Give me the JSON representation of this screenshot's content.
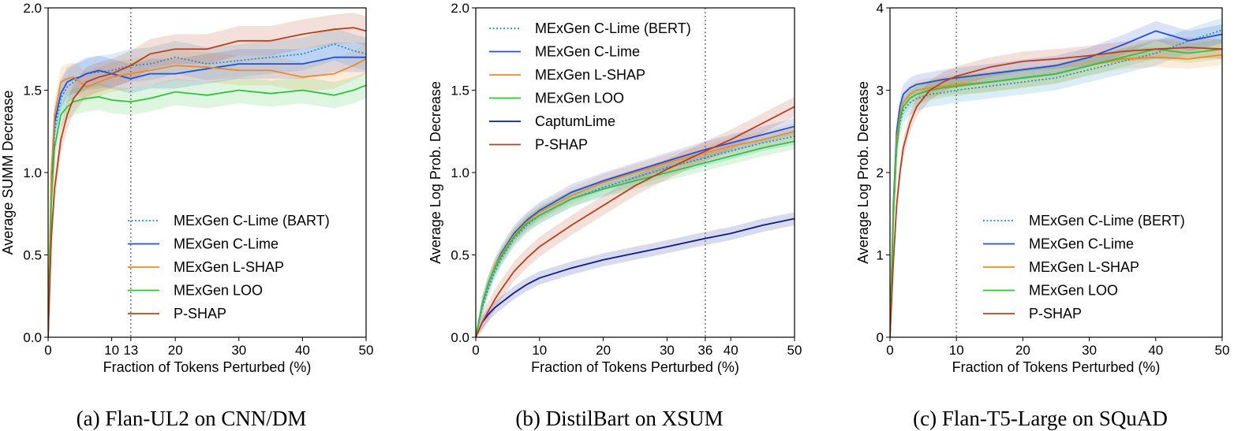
{
  "colors": {
    "MExGen C-Lime (BART)": "#1f8fc8",
    "MExGen C-Lime (BERT)": "#1f8fc8",
    "MExGen C-Lime": "#1f4fe0",
    "MExGen L-SHAP": "#f08a24",
    "MExGen LOO": "#2fc43c",
    "CaptumLime": "#0c1a8c",
    "P-SHAP": "#b8401a"
  },
  "chart_data": [
    {
      "type": "line",
      "caption": "(a) Flan-UL2 on CNN/DM",
      "xlabel": "Fraction of Tokens Perturbed (%)",
      "ylabel": "Average SUMM Decrease",
      "xlim": [
        0,
        50
      ],
      "ylim": [
        0,
        2
      ],
      "xticks": [
        0,
        10,
        13,
        20,
        30,
        40,
        50
      ],
      "xtick_labels": [
        "0",
        "10",
        "13",
        "20",
        "30",
        "40",
        "50"
      ],
      "yticks": [
        0,
        0.5,
        1.0,
        1.5,
        2.0
      ],
      "ytick_labels": [
        "0.0",
        "0.5",
        "1.0",
        "1.5",
        "2.0"
      ],
      "vline": 13,
      "legend_position": "lower-right",
      "series": [
        {
          "name": "MExGen C-Lime (BART)",
          "dash": "dotted",
          "x": [
            0,
            0.5,
            1,
            2,
            3,
            4,
            5,
            6,
            8,
            10,
            13,
            16,
            20,
            25,
            30,
            35,
            40,
            45,
            48,
            50
          ],
          "y": [
            0,
            0.9,
            1.25,
            1.45,
            1.52,
            1.55,
            1.58,
            1.6,
            1.61,
            1.62,
            1.65,
            1.66,
            1.7,
            1.66,
            1.68,
            1.7,
            1.72,
            1.78,
            1.74,
            1.72
          ],
          "band": 0.1
        },
        {
          "name": "MExGen C-Lime",
          "x": [
            0,
            0.5,
            1,
            2,
            3,
            4,
            5,
            6,
            8,
            10,
            13,
            16,
            20,
            25,
            30,
            35,
            40,
            45,
            48,
            50
          ],
          "y": [
            0,
            0.95,
            1.3,
            1.48,
            1.55,
            1.57,
            1.58,
            1.6,
            1.62,
            1.6,
            1.57,
            1.6,
            1.6,
            1.63,
            1.66,
            1.66,
            1.66,
            1.7,
            1.7,
            1.7
          ],
          "band": 0.09
        },
        {
          "name": "MExGen L-SHAP",
          "x": [
            0,
            0.5,
            1,
            2,
            3,
            4,
            5,
            6,
            8,
            10,
            13,
            16,
            20,
            25,
            30,
            35,
            40,
            45,
            48,
            50
          ],
          "y": [
            0,
            1.0,
            1.35,
            1.55,
            1.57,
            1.58,
            1.55,
            1.52,
            1.55,
            1.58,
            1.6,
            1.62,
            1.65,
            1.64,
            1.62,
            1.62,
            1.58,
            1.6,
            1.65,
            1.69
          ],
          "band": 0.09
        },
        {
          "name": "MExGen LOO",
          "x": [
            0,
            0.5,
            1,
            2,
            3,
            4,
            5,
            6,
            8,
            10,
            13,
            16,
            20,
            25,
            30,
            35,
            40,
            45,
            48,
            50
          ],
          "y": [
            0,
            0.8,
            1.15,
            1.35,
            1.4,
            1.43,
            1.44,
            1.45,
            1.46,
            1.44,
            1.43,
            1.45,
            1.49,
            1.47,
            1.5,
            1.48,
            1.5,
            1.47,
            1.5,
            1.53
          ],
          "band": 0.08
        },
        {
          "name": "P-SHAP",
          "x": [
            0,
            0.5,
            1,
            2,
            3,
            4,
            5,
            6,
            8,
            10,
            13,
            16,
            20,
            25,
            30,
            35,
            40,
            45,
            48,
            50
          ],
          "y": [
            0,
            0.6,
            0.9,
            1.2,
            1.35,
            1.45,
            1.5,
            1.55,
            1.58,
            1.6,
            1.65,
            1.72,
            1.75,
            1.75,
            1.8,
            1.8,
            1.84,
            1.87,
            1.88,
            1.86
          ],
          "band": 0.09
        }
      ]
    },
    {
      "type": "line",
      "caption": "(b) DistilBart on XSUM",
      "xlabel": "Fraction of Tokens Perturbed (%)",
      "ylabel": "Average Log Prob. Decrease",
      "xlim": [
        0,
        50
      ],
      "ylim": [
        0,
        2
      ],
      "xticks": [
        0,
        10,
        20,
        30,
        36,
        40,
        50
      ],
      "xtick_labels": [
        "0",
        "10",
        "20",
        "30",
        "36",
        "40",
        "50"
      ],
      "yticks": [
        0,
        0.5,
        1.0,
        1.5,
        2.0
      ],
      "ytick_labels": [
        "0.0",
        "0.5",
        "1.0",
        "1.5",
        "2.0"
      ],
      "vline": 36,
      "legend_position": "upper-left",
      "series": [
        {
          "name": "MExGen C-Lime (BERT)",
          "dash": "dotted",
          "x": [
            0,
            1,
            2,
            3,
            4,
            6,
            8,
            10,
            15,
            20,
            25,
            30,
            36,
            40,
            45,
            50
          ],
          "y": [
            0,
            0.18,
            0.3,
            0.4,
            0.48,
            0.6,
            0.68,
            0.74,
            0.84,
            0.91,
            0.97,
            1.03,
            1.09,
            1.13,
            1.18,
            1.22
          ],
          "band": 0.05
        },
        {
          "name": "MExGen C-Lime",
          "x": [
            0,
            1,
            2,
            3,
            4,
            6,
            8,
            10,
            15,
            20,
            25,
            30,
            36,
            40,
            45,
            50
          ],
          "y": [
            0,
            0.2,
            0.33,
            0.43,
            0.51,
            0.63,
            0.71,
            0.77,
            0.88,
            0.95,
            1.01,
            1.07,
            1.14,
            1.18,
            1.23,
            1.28
          ],
          "band": 0.05
        },
        {
          "name": "MExGen L-SHAP",
          "x": [
            0,
            1,
            2,
            3,
            4,
            6,
            8,
            10,
            15,
            20,
            25,
            30,
            36,
            40,
            45,
            50
          ],
          "y": [
            0,
            0.2,
            0.33,
            0.43,
            0.5,
            0.62,
            0.7,
            0.76,
            0.86,
            0.94,
            1.0,
            1.06,
            1.12,
            1.16,
            1.2,
            1.25
          ],
          "band": 0.05
        },
        {
          "name": "MExGen LOO",
          "x": [
            0,
            1,
            2,
            3,
            4,
            6,
            8,
            10,
            15,
            20,
            25,
            30,
            36,
            40,
            45,
            50
          ],
          "y": [
            0,
            0.2,
            0.33,
            0.42,
            0.49,
            0.61,
            0.69,
            0.74,
            0.84,
            0.9,
            0.95,
            1.0,
            1.06,
            1.1,
            1.15,
            1.19
          ],
          "band": 0.05
        },
        {
          "name": "CaptumLime",
          "x": [
            0,
            1,
            2,
            3,
            4,
            6,
            8,
            10,
            15,
            20,
            25,
            30,
            36,
            40,
            45,
            50
          ],
          "y": [
            0,
            0.09,
            0.14,
            0.18,
            0.21,
            0.27,
            0.32,
            0.36,
            0.42,
            0.47,
            0.51,
            0.55,
            0.6,
            0.63,
            0.68,
            0.72
          ],
          "band": 0.04
        },
        {
          "name": "P-SHAP",
          "x": [
            0,
            1,
            2,
            3,
            4,
            6,
            8,
            10,
            15,
            20,
            25,
            30,
            36,
            40,
            45,
            50
          ],
          "y": [
            0,
            0.09,
            0.16,
            0.23,
            0.29,
            0.4,
            0.48,
            0.55,
            0.68,
            0.8,
            0.92,
            1.02,
            1.13,
            1.2,
            1.3,
            1.4
          ],
          "band": 0.06
        }
      ]
    },
    {
      "type": "line",
      "caption": "(c) Flan-T5-Large on SQuAD",
      "xlabel": "Fraction of Tokens Perturbed (%)",
      "ylabel": "Average Log Prob. Decrease",
      "xlim": [
        0,
        50
      ],
      "ylim": [
        0,
        4
      ],
      "xticks": [
        0,
        10,
        20,
        30,
        40,
        50
      ],
      "xtick_labels": [
        "0",
        "10",
        "20",
        "30",
        "40",
        "50"
      ],
      "yticks": [
        0,
        1,
        2,
        3,
        4
      ],
      "ytick_labels": [
        "0",
        "1",
        "2",
        "3",
        "4"
      ],
      "vline": 10,
      "legend_position": "lower-right",
      "series": [
        {
          "name": "MExGen C-Lime (BERT)",
          "dash": "dotted",
          "x": [
            0,
            0.5,
            1,
            1.5,
            2,
            3,
            4,
            6,
            8,
            10,
            15,
            20,
            25,
            30,
            35,
            40,
            45,
            50
          ],
          "y": [
            0,
            1.5,
            2.3,
            2.6,
            2.75,
            2.85,
            2.9,
            2.95,
            2.97,
            3.0,
            3.05,
            3.1,
            3.15,
            3.25,
            3.35,
            3.45,
            3.6,
            3.73
          ],
          "band": 0.15
        },
        {
          "name": "MExGen C-Lime",
          "x": [
            0,
            0.5,
            1,
            1.5,
            2,
            3,
            4,
            6,
            8,
            10,
            15,
            20,
            25,
            30,
            35,
            40,
            45,
            50
          ],
          "y": [
            0,
            1.6,
            2.5,
            2.8,
            2.95,
            3.03,
            3.07,
            3.1,
            3.13,
            3.15,
            3.2,
            3.25,
            3.3,
            3.4,
            3.55,
            3.72,
            3.6,
            3.68
          ],
          "band": 0.12
        },
        {
          "name": "MExGen L-SHAP",
          "x": [
            0,
            0.5,
            1,
            1.5,
            2,
            3,
            4,
            6,
            8,
            10,
            15,
            20,
            25,
            30,
            35,
            40,
            45,
            50
          ],
          "y": [
            0,
            1.5,
            2.4,
            2.7,
            2.85,
            2.95,
            3.0,
            3.03,
            3.05,
            3.07,
            3.1,
            3.15,
            3.2,
            3.3,
            3.38,
            3.4,
            3.38,
            3.43
          ],
          "band": 0.12
        },
        {
          "name": "MExGen LOO",
          "x": [
            0,
            0.5,
            1,
            1.5,
            2,
            3,
            4,
            6,
            8,
            10,
            15,
            20,
            25,
            30,
            35,
            40,
            45,
            50
          ],
          "y": [
            0,
            1.4,
            2.3,
            2.65,
            2.8,
            2.9,
            2.95,
            3.0,
            3.03,
            3.05,
            3.1,
            3.15,
            3.2,
            3.3,
            3.4,
            3.5,
            3.45,
            3.5
          ],
          "band": 0.12
        },
        {
          "name": "P-SHAP",
          "x": [
            0,
            0.5,
            1,
            1.5,
            2,
            3,
            4,
            6,
            8,
            10,
            15,
            20,
            25,
            30,
            35,
            40,
            45,
            50
          ],
          "y": [
            0,
            0.9,
            1.6,
            2.0,
            2.3,
            2.6,
            2.8,
            3.0,
            3.1,
            3.17,
            3.28,
            3.35,
            3.38,
            3.42,
            3.47,
            3.5,
            3.52,
            3.5
          ],
          "band": 0.12
        }
      ]
    }
  ]
}
